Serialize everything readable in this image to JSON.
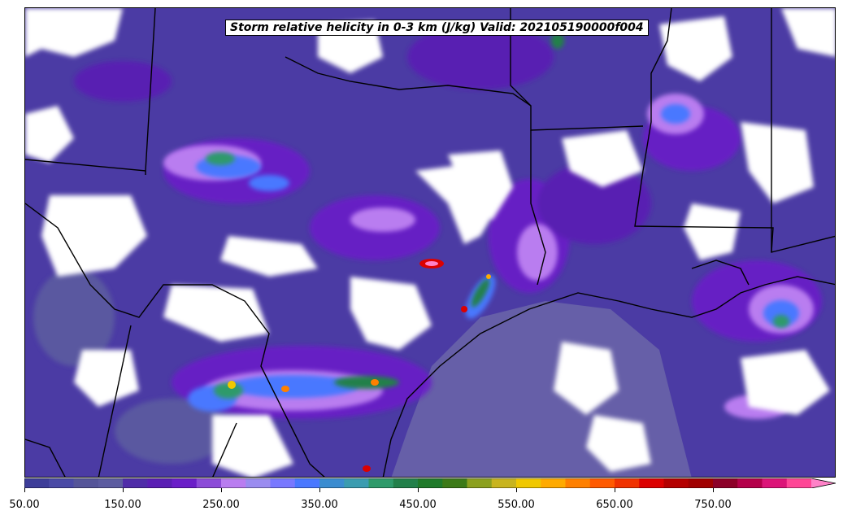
{
  "title": "Storm relative helicity in 0-3 km (J/kg) Valid: 202105190000f004",
  "colorbar": {
    "ticks": [
      "50.00",
      "150.00",
      "250.00",
      "350.00",
      "450.00",
      "550.00",
      "650.00",
      "750.00"
    ],
    "colors": [
      "#3d3d99",
      "#4a4aa6",
      "#555599",
      "#5c5ca0",
      "#4f2ca8",
      "#5a1eb4",
      "#6a1ec8",
      "#8c4bd8",
      "#b97df0",
      "#9a8cf0",
      "#7878ff",
      "#4a78ff",
      "#3a8cd0",
      "#3a9cb0",
      "#2e9a6a",
      "#22804a",
      "#1f7a2a",
      "#3c7a18",
      "#8ca01e",
      "#c8b41e",
      "#f0c800",
      "#ffaa00",
      "#ff8000",
      "#ff5a00",
      "#f03200",
      "#dc0000",
      "#b40000",
      "#a00000",
      "#8c0028",
      "#b4004a",
      "#dc1478",
      "#ff4696",
      "#ff82c8"
    ],
    "extend": "max"
  },
  "colors": {
    "background": "#ffffff",
    "gulf_shading": "#665fa8",
    "border": "#000000"
  }
}
